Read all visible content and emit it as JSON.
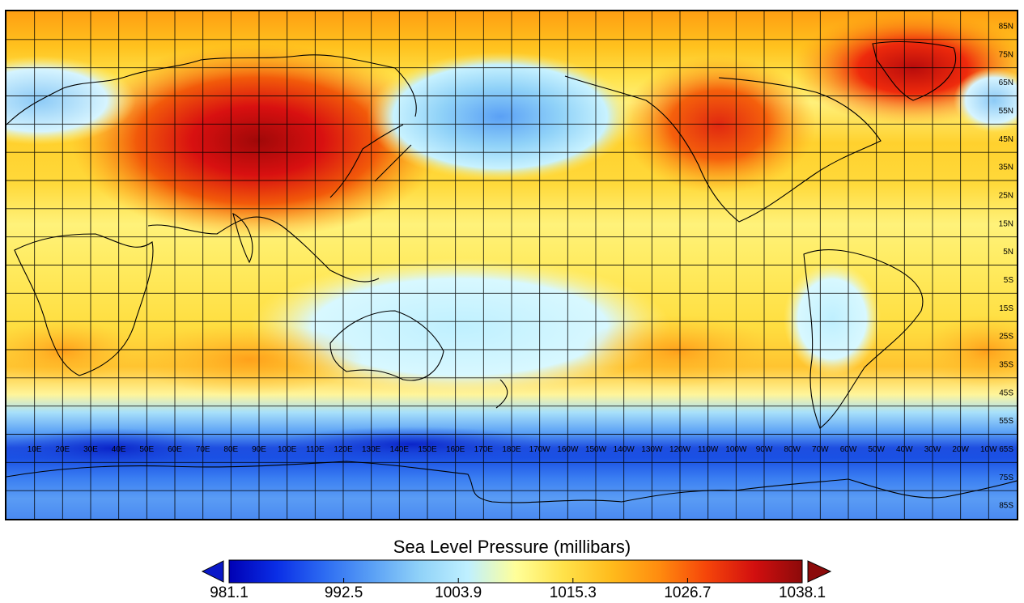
{
  "title": "Sea Level Pressure (millibars)",
  "colorbar": {
    "min": 981.1,
    "max": 1038.1,
    "ticks": [
      "981.1",
      "992.5",
      "1003.9",
      "1015.3",
      "1026.7",
      "1038.1"
    ],
    "colors": [
      "#0000b4",
      "#0a2ee6",
      "#2d6cf2",
      "#5aa0f5",
      "#90d2f8",
      "#bff0ff",
      "#ffff9a",
      "#ffe24a",
      "#ffbb1c",
      "#ff8c0f",
      "#f5450a",
      "#d20f0f",
      "#8c0a0a"
    ]
  },
  "map": {
    "lon_labels": [
      "10E",
      "20E",
      "30E",
      "40E",
      "50E",
      "60E",
      "70E",
      "80E",
      "90E",
      "100E",
      "110E",
      "120E",
      "130E",
      "140E",
      "150E",
      "160E",
      "170E",
      "180E",
      "170W",
      "160W",
      "150W",
      "140W",
      "130W",
      "120W",
      "110W",
      "100W",
      "90W",
      "80W",
      "70W",
      "60W",
      "50W",
      "40W",
      "30W",
      "20W",
      "10W"
    ],
    "lat_labels": [
      "85N",
      "75N",
      "65N",
      "55N",
      "45N",
      "35N",
      "25N",
      "15N",
      "5N",
      "5S",
      "15S",
      "25S",
      "35S",
      "45S",
      "55S",
      "65S",
      "75S",
      "85S"
    ],
    "grid": true
  }
}
